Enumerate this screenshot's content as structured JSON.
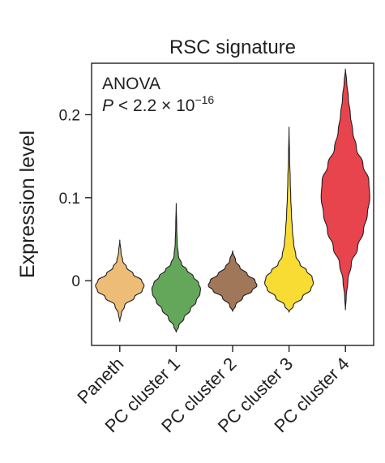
{
  "chart_data": {
    "type": "violin",
    "title": "RSC signature",
    "ylabel": "Expression level",
    "xlabel": "",
    "ylim": [
      -0.078,
      0.262
    ],
    "yticks": [
      0,
      0.1,
      0.2
    ],
    "ytick_labels": [
      "0",
      "0.1",
      "0.2"
    ],
    "grid": false,
    "annotation": {
      "line1": "ANOVA",
      "p_symbol": "P",
      "p_text": " < 2.2 × 10",
      "p_exponent": "−16"
    },
    "categories": [
      "Paneth",
      "PC cluster 1",
      "PC cluster 2",
      "PC cluster 3",
      "PC cluster 4"
    ],
    "violins": [
      {
        "name": "Paneth",
        "color": "#edbd78",
        "min": -0.049,
        "max": 0.049,
        "profile": [
          [
            -0.049,
            0.0
          ],
          [
            -0.04,
            0.06
          ],
          [
            -0.03,
            0.2
          ],
          [
            -0.02,
            0.6
          ],
          [
            -0.012,
            0.92
          ],
          [
            -0.006,
            1.0
          ],
          [
            0.0,
            0.9
          ],
          [
            0.008,
            0.55
          ],
          [
            0.016,
            0.28
          ],
          [
            0.024,
            0.12
          ],
          [
            0.034,
            0.05
          ],
          [
            0.049,
            0.0
          ]
        ]
      },
      {
        "name": "PC cluster 1",
        "color": "#65a75a",
        "min": -0.062,
        "max": 0.093,
        "profile": [
          [
            -0.062,
            0.0
          ],
          [
            -0.055,
            0.1
          ],
          [
            -0.045,
            0.32
          ],
          [
            -0.035,
            0.58
          ],
          [
            -0.025,
            0.82
          ],
          [
            -0.015,
            0.98
          ],
          [
            -0.01,
            1.0
          ],
          [
            -0.003,
            0.92
          ],
          [
            0.005,
            0.7
          ],
          [
            0.013,
            0.44
          ],
          [
            0.02,
            0.22
          ],
          [
            0.03,
            0.09
          ],
          [
            0.045,
            0.04
          ],
          [
            0.065,
            0.02
          ],
          [
            0.093,
            0.0
          ]
        ]
      },
      {
        "name": "PC cluster 2",
        "color": "#a1775a",
        "min": -0.037,
        "max": 0.036,
        "profile": [
          [
            -0.037,
            0.0
          ],
          [
            -0.03,
            0.12
          ],
          [
            -0.02,
            0.42
          ],
          [
            -0.012,
            0.8
          ],
          [
            -0.006,
            1.0
          ],
          [
            0.0,
            0.92
          ],
          [
            0.008,
            0.6
          ],
          [
            0.016,
            0.3
          ],
          [
            0.024,
            0.12
          ],
          [
            0.036,
            0.0
          ]
        ]
      },
      {
        "name": "PC cluster 3",
        "color": "#f8dc34",
        "min": -0.038,
        "max": 0.185,
        "profile": [
          [
            -0.038,
            0.0
          ],
          [
            -0.03,
            0.18
          ],
          [
            -0.02,
            0.55
          ],
          [
            -0.01,
            0.9
          ],
          [
            -0.003,
            1.0
          ],
          [
            0.004,
            0.95
          ],
          [
            0.012,
            0.72
          ],
          [
            0.02,
            0.45
          ],
          [
            0.03,
            0.28
          ],
          [
            0.045,
            0.19
          ],
          [
            0.06,
            0.14
          ],
          [
            0.08,
            0.1
          ],
          [
            0.1,
            0.07
          ],
          [
            0.12,
            0.05
          ],
          [
            0.15,
            0.02
          ],
          [
            0.185,
            0.0
          ]
        ]
      },
      {
        "name": "PC cluster 4",
        "color": "#e8444e",
        "min": -0.035,
        "max": 0.255,
        "profile": [
          [
            -0.035,
            0.0
          ],
          [
            -0.02,
            0.03
          ],
          [
            0.0,
            0.1
          ],
          [
            0.02,
            0.24
          ],
          [
            0.04,
            0.5
          ],
          [
            0.06,
            0.74
          ],
          [
            0.08,
            0.9
          ],
          [
            0.1,
            1.0
          ],
          [
            0.12,
            0.96
          ],
          [
            0.14,
            0.72
          ],
          [
            0.16,
            0.45
          ],
          [
            0.18,
            0.3
          ],
          [
            0.2,
            0.2
          ],
          [
            0.22,
            0.12
          ],
          [
            0.24,
            0.05
          ],
          [
            0.255,
            0.0
          ]
        ]
      }
    ]
  }
}
